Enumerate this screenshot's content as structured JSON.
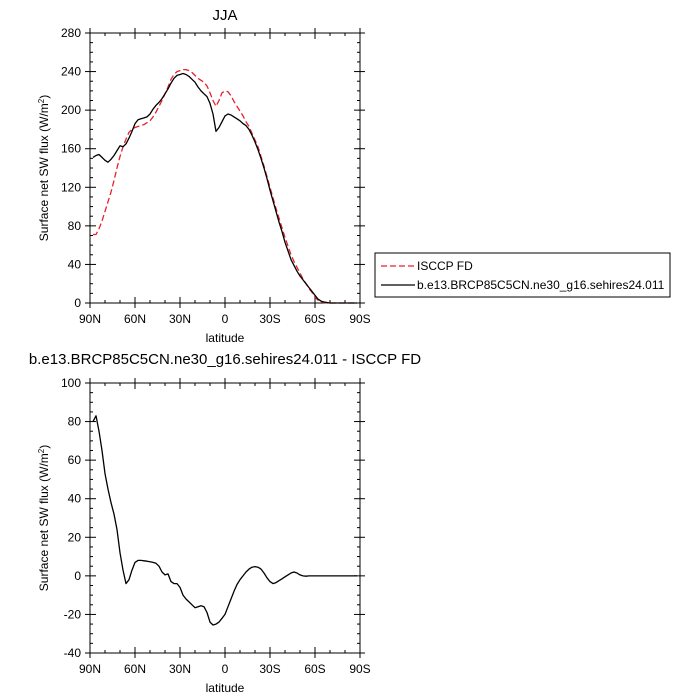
{
  "chart_data": [
    {
      "type": "line",
      "title": "JJA",
      "xlabel": "latitude",
      "ylabel_main": "Surface net SW flux (W/m",
      "ylabel_sup": "2",
      "ylabel_close": ")",
      "xlim": [
        90,
        -90
      ],
      "ylim": [
        0,
        280
      ],
      "xticks": [
        {
          "value": 90,
          "label": "90N"
        },
        {
          "value": 60,
          "label": "60N"
        },
        {
          "value": 30,
          "label": "30N"
        },
        {
          "value": 0,
          "label": "0"
        },
        {
          "value": -30,
          "label": "30S"
        },
        {
          "value": -60,
          "label": "60S"
        },
        {
          "value": -90,
          "label": "90S"
        }
      ],
      "yticks": [
        0,
        40,
        80,
        120,
        160,
        200,
        240,
        280
      ],
      "legend": "right, outside",
      "series": [
        {
          "name": "ISCCP FD",
          "color": "#e8202a",
          "dash": "dashed",
          "x": [
            88,
            86,
            84,
            82,
            80,
            78,
            76,
            74,
            72,
            70,
            68,
            66,
            64,
            62,
            60,
            58,
            56,
            54,
            52,
            50,
            48,
            46,
            44,
            42,
            40,
            38,
            36,
            34,
            32,
            30,
            28,
            26,
            24,
            22,
            20,
            18,
            16,
            14,
            12,
            10,
            8,
            6,
            4,
            2,
            0,
            -2,
            -4,
            -6,
            -8,
            -10,
            -12,
            -14,
            -16,
            -18,
            -20,
            -22,
            -24,
            -26,
            -28,
            -30,
            -32,
            -34,
            -36,
            -38,
            -40,
            -42,
            -44,
            -46,
            -48,
            -50,
            -52,
            -54,
            -56,
            -58,
            -60,
            -62,
            -64,
            -66,
            -68,
            -70,
            -72,
            -74,
            -76,
            -78,
            -80,
            -82,
            -84,
            -86,
            -88
          ],
          "y": [
            71,
            71,
            77,
            85,
            95,
            105,
            115,
            127,
            140,
            152,
            162,
            170,
            177,
            180,
            182,
            183,
            184,
            185,
            187,
            189,
            193,
            198,
            204,
            210,
            217,
            224,
            232,
            237,
            240,
            241,
            242,
            242,
            241,
            239,
            236,
            233,
            231,
            229,
            225,
            218,
            210,
            204,
            210,
            218,
            220,
            219,
            215,
            209,
            204,
            199,
            194,
            188,
            183,
            176,
            169,
            162,
            152,
            142,
            131,
            120,
            109,
            98,
            88,
            78,
            68,
            59,
            50,
            43,
            37,
            31,
            25,
            20,
            15,
            11,
            6,
            3,
            1,
            0.5,
            0,
            0,
            0,
            0,
            0,
            0,
            0,
            0,
            0,
            0,
            0
          ]
        },
        {
          "name": "b.e13.BRCP85C5CN.ne30_g16.sehires24.011",
          "color": "#000000",
          "dash": "solid",
          "x": [
            88,
            86,
            84,
            82,
            80,
            78,
            76,
            74,
            72,
            70,
            68,
            66,
            64,
            62,
            60,
            58,
            56,
            54,
            52,
            50,
            48,
            46,
            44,
            42,
            40,
            38,
            36,
            34,
            32,
            30,
            28,
            26,
            24,
            22,
            20,
            18,
            16,
            14,
            12,
            10,
            8,
            6,
            4,
            2,
            0,
            -2,
            -4,
            -6,
            -8,
            -10,
            -12,
            -14,
            -16,
            -18,
            -20,
            -22,
            -24,
            -26,
            -28,
            -30,
            -32,
            -34,
            -36,
            -38,
            -40,
            -42,
            -44,
            -46,
            -48,
            -50,
            -52,
            -54,
            -56,
            -58,
            -60,
            -62,
            -64,
            -66,
            -68,
            -70,
            -72,
            -74,
            -76,
            -78,
            -80,
            -82,
            -84,
            -86,
            -88
          ],
          "y": [
            151,
            153,
            154,
            151,
            148,
            146,
            149,
            153,
            158,
            163,
            162,
            165,
            171,
            178,
            186,
            190,
            191,
            192,
            193,
            196,
            201,
            205,
            208,
            212,
            217,
            222,
            228,
            233,
            236,
            237,
            238,
            237,
            235,
            232,
            229,
            224,
            220,
            217,
            214,
            207,
            196,
            178,
            182,
            188,
            194,
            196,
            195,
            193,
            191,
            189,
            186,
            184,
            180,
            174,
            167,
            159,
            150,
            140,
            129,
            117,
            106,
            95,
            84,
            74,
            63,
            54,
            45,
            39,
            33,
            28,
            24,
            20,
            16,
            12,
            8,
            4,
            2,
            1,
            0.5,
            0,
            0,
            0,
            0,
            0,
            0,
            0,
            0,
            0,
            0
          ]
        }
      ]
    },
    {
      "type": "line",
      "title": "b.e13.BRCP85C5CN.ne30_g16.sehires24.011 - ISCCP FD",
      "xlabel": "latitude",
      "ylabel_main": "Surface net SW flux (W/m",
      "ylabel_sup": "2",
      "ylabel_close": ")",
      "xlim": [
        90,
        -90
      ],
      "ylim": [
        -40,
        100
      ],
      "xticks": [
        {
          "value": 90,
          "label": "90N"
        },
        {
          "value": 60,
          "label": "60N"
        },
        {
          "value": 30,
          "label": "30N"
        },
        {
          "value": 0,
          "label": "0"
        },
        {
          "value": -30,
          "label": "30S"
        },
        {
          "value": -60,
          "label": "60S"
        },
        {
          "value": -90,
          "label": "90S"
        }
      ],
      "yticks": [
        -40,
        -20,
        0,
        20,
        40,
        60,
        80,
        100
      ],
      "series": [
        {
          "color": "#000000",
          "dash": "solid",
          "x": [
            88,
            86,
            84,
            82,
            80,
            78,
            76,
            74,
            72,
            70,
            68,
            66,
            64,
            62,
            60,
            58,
            56,
            54,
            52,
            50,
            48,
            46,
            44,
            42,
            40,
            38,
            36,
            34,
            32,
            30,
            28,
            26,
            24,
            22,
            20,
            18,
            16,
            14,
            12,
            10,
            8,
            6,
            4,
            2,
            0,
            -2,
            -4,
            -6,
            -8,
            -10,
            -12,
            -14,
            -16,
            -18,
            -20,
            -22,
            -24,
            -26,
            -28,
            -30,
            -32,
            -34,
            -36,
            -38,
            -40,
            -42,
            -44,
            -46,
            -48,
            -50,
            -52,
            -54,
            -56,
            -58,
            -60,
            -62,
            -64,
            -66,
            -68,
            -70,
            -72,
            -74,
            -76,
            -78,
            -80,
            -82,
            -84,
            -86,
            -88
          ],
          "y": [
            80,
            83,
            75,
            65,
            53,
            45,
            38,
            32,
            24,
            12,
            3,
            -4,
            -2,
            3,
            7,
            8,
            8,
            7.8,
            7.6,
            7.3,
            7,
            6.5,
            5,
            2,
            0.5,
            1,
            -3,
            -4,
            -4,
            -6,
            -10,
            -12,
            -13.5,
            -15,
            -16.5,
            -16,
            -15.5,
            -16,
            -19,
            -24,
            -25.5,
            -25,
            -24,
            -22,
            -20,
            -16,
            -12,
            -8,
            -4.5,
            -2,
            0,
            2,
            3.5,
            4.5,
            4.8,
            4.5,
            3.5,
            1.5,
            -1,
            -3,
            -4,
            -3.5,
            -2.5,
            -1.5,
            -0.5,
            0.5,
            1.5,
            2,
            1.5,
            0.5,
            0,
            -0.2,
            0,
            0,
            0,
            0,
            0,
            0,
            0,
            0,
            0,
            0,
            0,
            0,
            0,
            0,
            0,
            0,
            0
          ]
        }
      ]
    }
  ]
}
